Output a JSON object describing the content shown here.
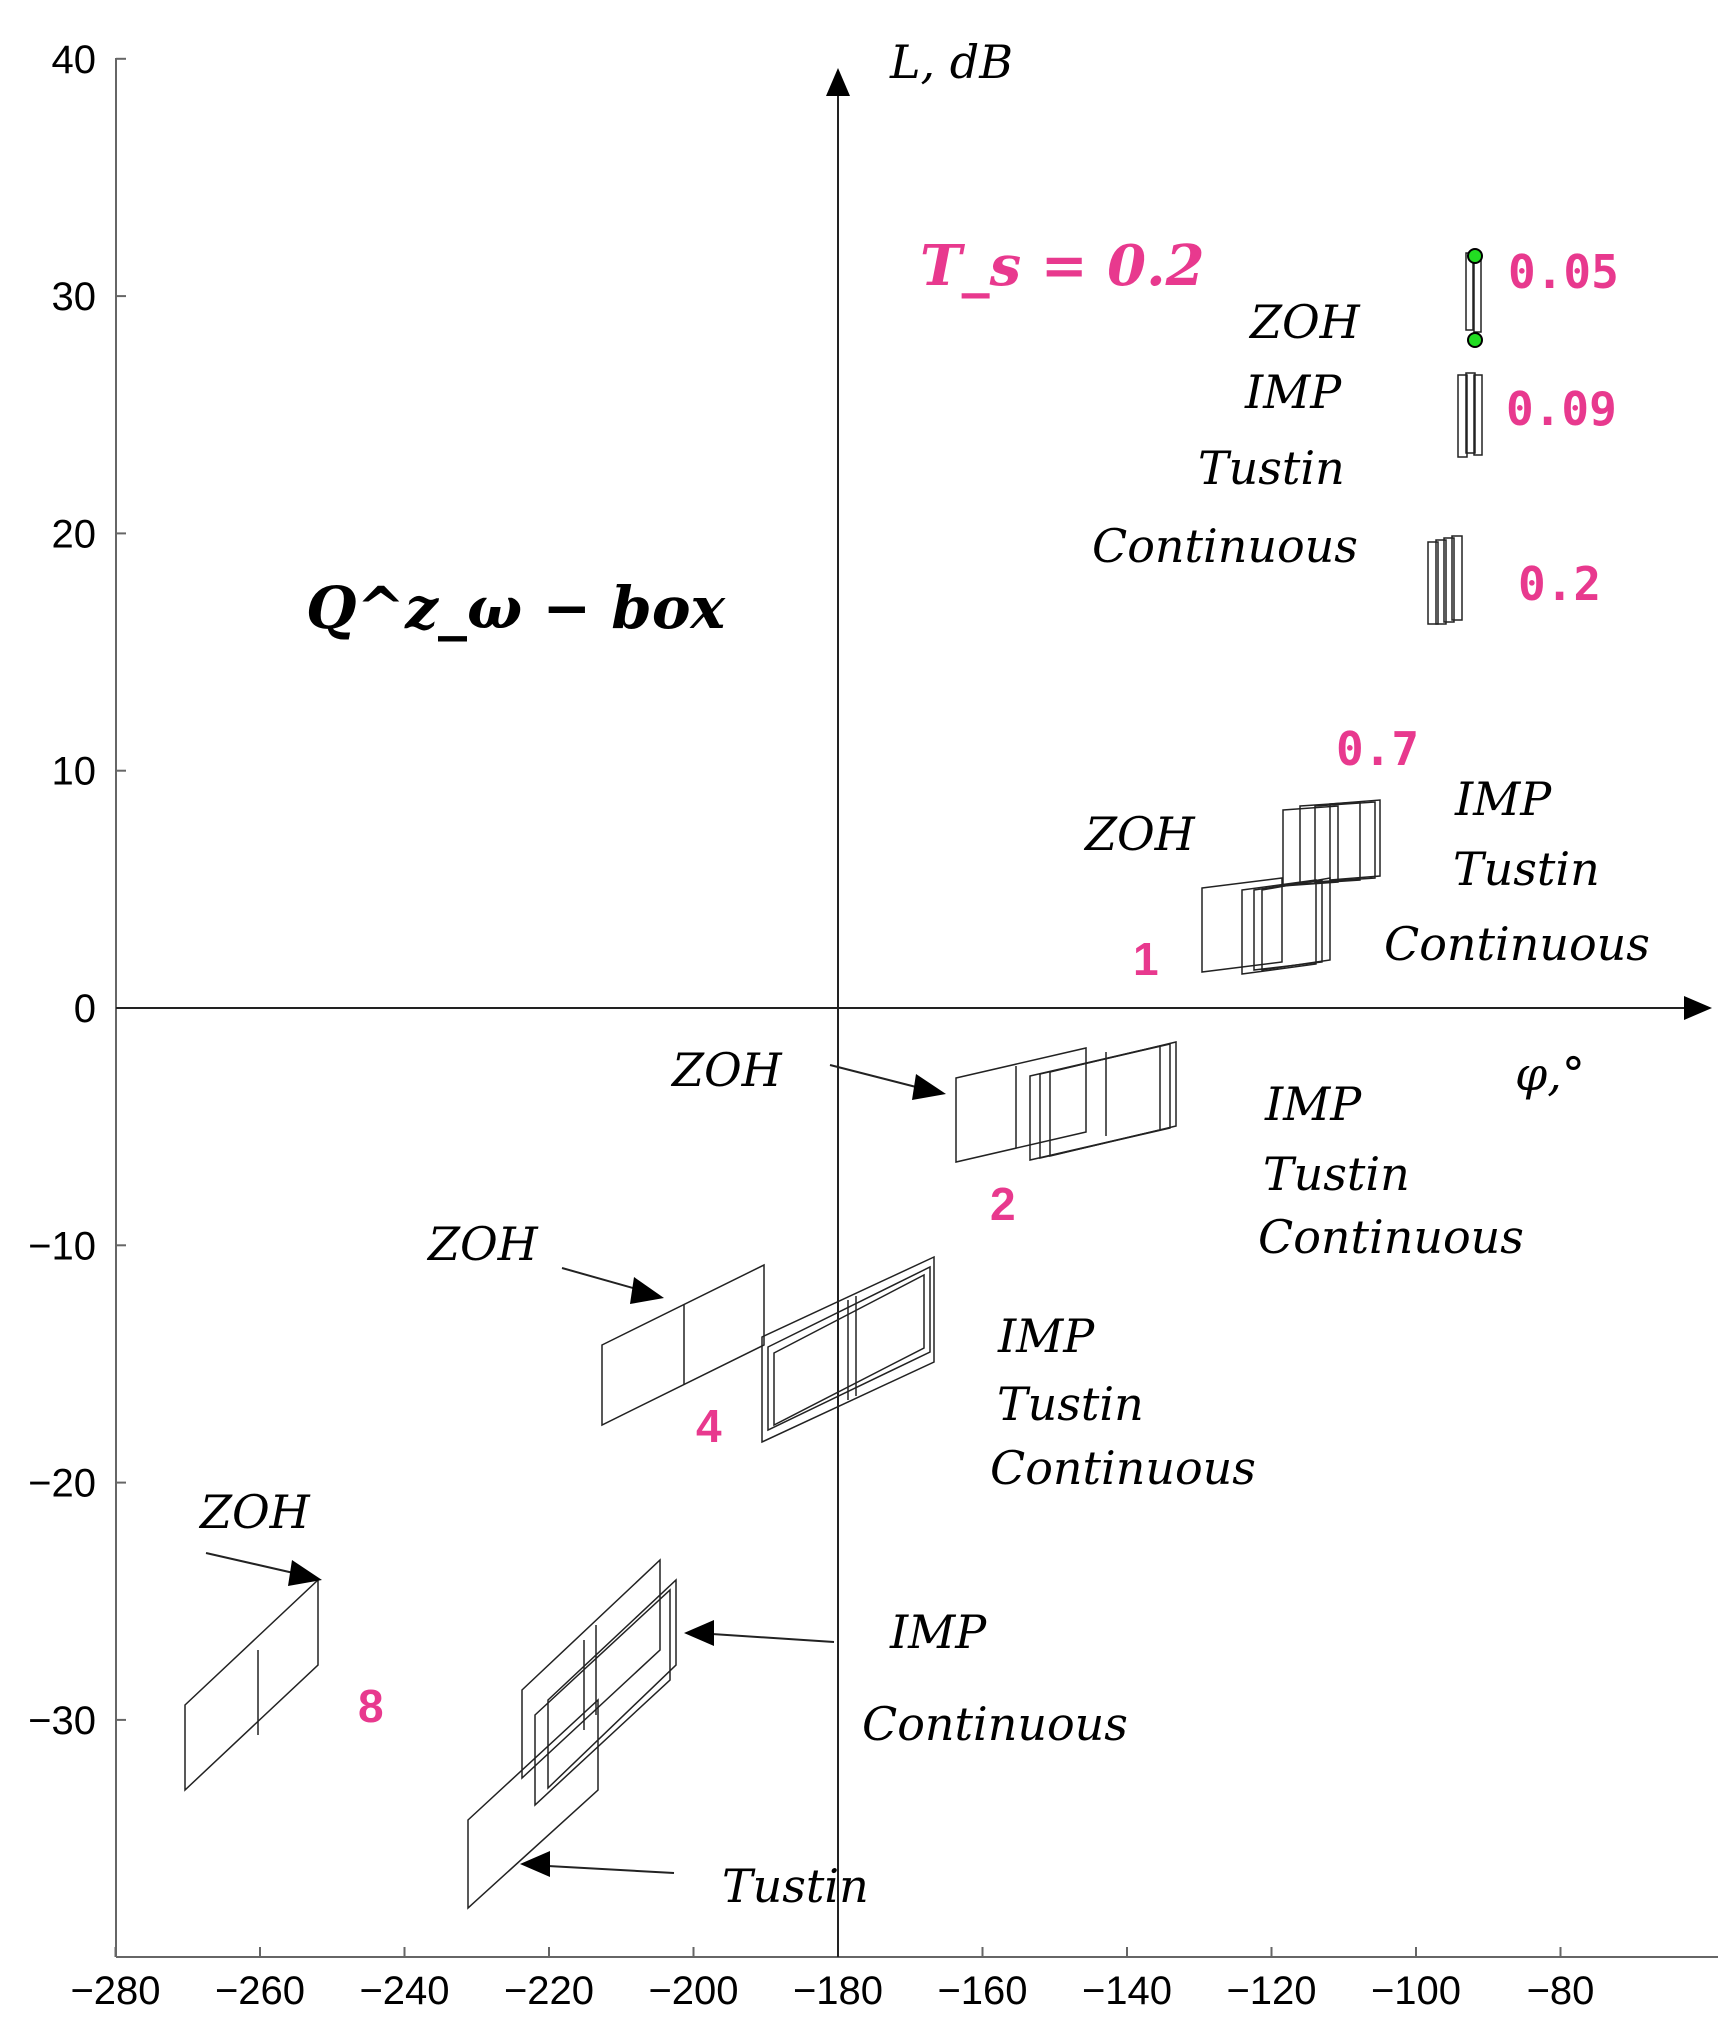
{
  "chart_data": {
    "type": "scatter",
    "xlim": [
      -283,
      -68
    ],
    "ylim": [
      -40,
      40
    ],
    "x_ticks": [
      "−280",
      "−260",
      "−240",
      "−220",
      "−200",
      "−180",
      "−160",
      "−140",
      "−120",
      "−100",
      "−80"
    ],
    "x_tick_values": [
      -280,
      -260,
      -240,
      -220,
      -200,
      -180,
      -160,
      -140,
      -120,
      -100,
      -80
    ],
    "y_ticks": [
      "40",
      "30",
      "20",
      "10",
      "0",
      "−10",
      "−20",
      "−30"
    ],
    "y_tick_values": [
      40,
      30,
      20,
      10,
      0,
      -10,
      -20,
      -30
    ],
    "axis_labels": {
      "y": "L, dB",
      "x": "φ,°"
    },
    "annotations": {
      "title": "T_s = 0.2",
      "box_label": "Q^z_ω − box",
      "method_names": [
        "ZOH",
        "IMP",
        "Tustin",
        "Continuous"
      ],
      "frequencies": [
        "0.05",
        "0.09",
        "0.2",
        "0.7",
        "1",
        "2",
        "4",
        "8"
      ]
    },
    "box_groups": [
      {
        "frequency": "0.05",
        "phase_range": [
          -93,
          -91
        ],
        "gain_range": [
          28,
          32
        ]
      },
      {
        "frequency": "0.09",
        "phase_range": [
          -95,
          -92
        ],
        "gain_range": [
          23,
          27
        ]
      },
      {
        "frequency": "0.2",
        "phase_range": [
          -98,
          -94
        ],
        "gain_range": [
          16,
          20
        ]
      },
      {
        "frequency": "0.7",
        "phase_range": [
          -116,
          -104
        ],
        "gain_range": [
          5,
          9
        ]
      },
      {
        "frequency": "1",
        "phase_range": [
          -130,
          -114
        ],
        "gain_range": [
          1,
          5
        ]
      },
      {
        "frequency": "2",
        "phase_range": [
          -164,
          -132
        ],
        "gain_range": [
          -7,
          -2
        ]
      },
      {
        "frequency": "4",
        "phase_range": [
          -212,
          -167
        ],
        "gain_range": [
          -18,
          -11
        ]
      },
      {
        "frequency": "8",
        "phase_range": [
          -270,
          -202
        ],
        "gain_range": [
          -38,
          -23
        ]
      }
    ],
    "highlight_points": [
      {
        "x": -92.5,
        "y": 31.6,
        "color": "#22dd22"
      },
      {
        "x": -92.5,
        "y": 28.1,
        "color": "#22dd22"
      }
    ]
  }
}
